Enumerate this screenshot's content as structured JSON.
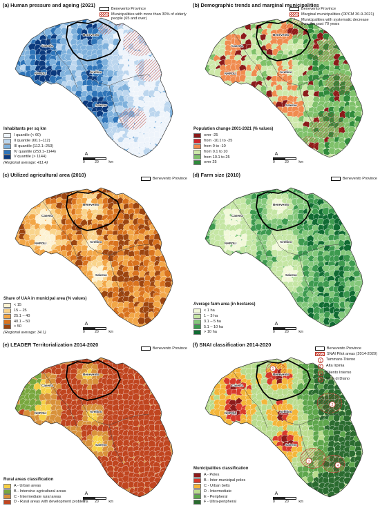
{
  "cities": [
    "Caserta",
    "Benevento",
    "Avellino",
    "NAPOLI",
    "Salerno"
  ],
  "scale": {
    "north": "A",
    "labels": [
      "0",
      "20",
      "km"
    ]
  },
  "panels": [
    {
      "id": "a",
      "title": "(a) Human pressure and ageing (2021)",
      "top_legend": [
        {
          "symbol": "outline",
          "text": "Benevento Province"
        },
        {
          "symbol": "hatch",
          "text": "Municipalities with more than 30% of elderly people (65 and over)"
        }
      ],
      "legend_title": "Inhabitants per sq km",
      "legend": [
        {
          "label": "I quantile (< 60)",
          "color": "#eef4fb"
        },
        {
          "label": "II quantile (60.1–112)",
          "color": "#bcd6ee"
        },
        {
          "label": "III quantile (112.1–253)",
          "color": "#7fb1dc"
        },
        {
          "label": "IV quantile (253.1–1144)",
          "color": "#2e74b8"
        },
        {
          "label": "V quantile (> 1144)",
          "color": "#0b3a7e"
        }
      ],
      "note": "(Regional average: 411.4)",
      "hatch": true
    },
    {
      "id": "b",
      "title": "(b) Demographic trends and marginal municipalities",
      "top_legend": [
        {
          "symbol": "outline",
          "text": "Benevento Province"
        },
        {
          "symbol": "hatch",
          "text": "Marginal municipalities (DPCM 30-9-2021)"
        },
        {
          "symbol": "dot",
          "text": "Municipalities with systematic decrease over the past 70 years"
        }
      ],
      "legend_title": "Population change 2001-2021 (% values)",
      "legend": [
        {
          "label": "over -25",
          "color": "#8b1a1a"
        },
        {
          "label": "from -10.1 to -25",
          "color": "#d1272e"
        },
        {
          "label": "from 0 to -10",
          "color": "#f08b4f"
        },
        {
          "label": "from 0.1 to 10",
          "color": "#cde8a9"
        },
        {
          "label": "from 10.1 to 25",
          "color": "#7fc16a"
        },
        {
          "label": "over 25",
          "color": "#2f8a3b"
        }
      ],
      "note": "",
      "hatch": true
    },
    {
      "id": "c",
      "title": "(c) Utilized agricultural area (2010)",
      "top_legend": [
        {
          "symbol": "outline",
          "text": "Benevento Province"
        }
      ],
      "legend_title": "Share of UAA in municipal area (% values)",
      "legend": [
        {
          "label": "< 15",
          "color": "#fdf2d2"
        },
        {
          "label": "15 – 25",
          "color": "#f9d48c"
        },
        {
          "label": "25.1 – 40",
          "color": "#f2a646"
        },
        {
          "label": "40.1 – 50",
          "color": "#d9731e"
        },
        {
          "label": "> 50",
          "color": "#9c4510"
        }
      ],
      "note": "(Regional average: 34.1)",
      "hatch": false
    },
    {
      "id": "d",
      "title": "(d) Farm size (2010)",
      "top_legend": [
        {
          "symbol": "outline",
          "text": "Benevento Province"
        }
      ],
      "legend_title": "Average farm area (in hectares)",
      "legend": [
        {
          "label": "< 1 ha",
          "color": "#f1f8d9"
        },
        {
          "label": "1 – 3 ha",
          "color": "#c5e6a4"
        },
        {
          "label": "3.1 – 5 ha",
          "color": "#83c77a"
        },
        {
          "label": "5.1 – 10 ha",
          "color": "#3d9a4f"
        },
        {
          "label": "> 10 ha",
          "color": "#106b32"
        }
      ],
      "note": "",
      "hatch": false
    },
    {
      "id": "e",
      "title": "(e) LEADER Territorialization 2014-2020",
      "top_legend": [
        {
          "symbol": "outline",
          "text": "Benevento Province"
        }
      ],
      "legend_title": "Rural areas classification",
      "legend": [
        {
          "label": "A - Urban areas",
          "color": "#f6cf45"
        },
        {
          "label": "B - Intensive agricultural areas",
          "color": "#78a73e"
        },
        {
          "label": "C - Intermediate rural areas",
          "color": "#d8913a"
        },
        {
          "label": "D - Rural areas with development problems",
          "color": "#c0451f"
        }
      ],
      "note": "",
      "hatch": false
    },
    {
      "id": "f",
      "title": "(f) SNAI classification 2014-2020",
      "top_legend": [
        {
          "symbol": "outline",
          "text": "Benevento Province"
        },
        {
          "symbol": "hatch",
          "text": "SNAI Pilot areas (2014-2020)"
        },
        {
          "symbol": "circle",
          "num": "1",
          "text": "Tammaro-Titerno"
        },
        {
          "symbol": "circle",
          "num": "2",
          "text": "Alta Irpinia"
        },
        {
          "symbol": "circle",
          "num": "3",
          "text": "Cilento Interno"
        },
        {
          "symbol": "circle",
          "num": "4",
          "text": "Vallo di Diano"
        }
      ],
      "legend_title": "Municipalities classification",
      "legend": [
        {
          "label": "A - Poles",
          "color": "#8e1b1b"
        },
        {
          "label": "B - Inter-municipal poles",
          "color": "#d83a2c"
        },
        {
          "label": "C - Urban belts",
          "color": "#f4b63a"
        },
        {
          "label": "D - Intermediate",
          "color": "#b9dc8e"
        },
        {
          "label": "E - Peripheral",
          "color": "#5ea64c"
        },
        {
          "label": "F - Ultra-peripheral",
          "color": "#2a6b2f"
        }
      ],
      "note": "",
      "hatch": true,
      "pilot_numbers": [
        "1",
        "2",
        "3",
        "4"
      ]
    }
  ]
}
